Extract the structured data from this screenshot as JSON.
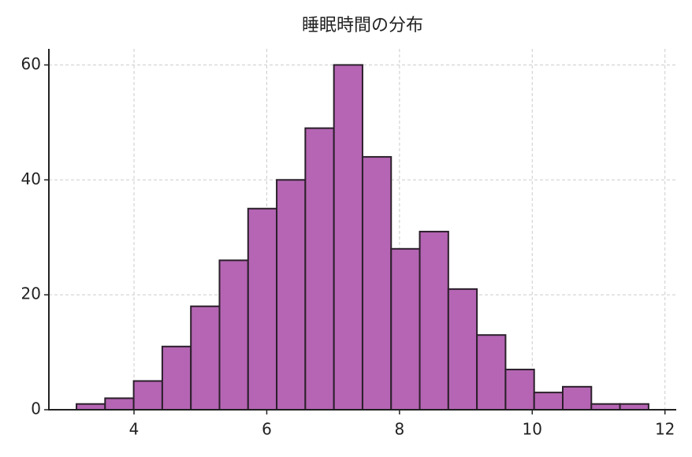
{
  "chart_data": {
    "type": "histogram",
    "title": "睡眠時間の分布",
    "bins": [
      3.133,
      3.564,
      3.995,
      4.426,
      4.857,
      5.288,
      5.719,
      6.15,
      6.581,
      7.012,
      7.443,
      7.874,
      8.305,
      8.736,
      9.167,
      9.598,
      10.029,
      10.46,
      10.891,
      11.322,
      11.753
    ],
    "values": [
      1,
      2,
      5,
      11,
      18,
      26,
      35,
      40,
      49,
      60,
      44,
      28,
      31,
      21,
      13,
      7,
      3,
      4,
      1,
      1
    ],
    "color": "#b565b3",
    "edgecolor": "#2b1f2b",
    "xlim": [
      2.717,
      12.17
    ],
    "ylim": [
      0,
      62.8
    ],
    "xticks": [
      4,
      6,
      8,
      10,
      12
    ],
    "yticks": [
      0,
      20,
      40,
      60
    ],
    "grid": true
  }
}
